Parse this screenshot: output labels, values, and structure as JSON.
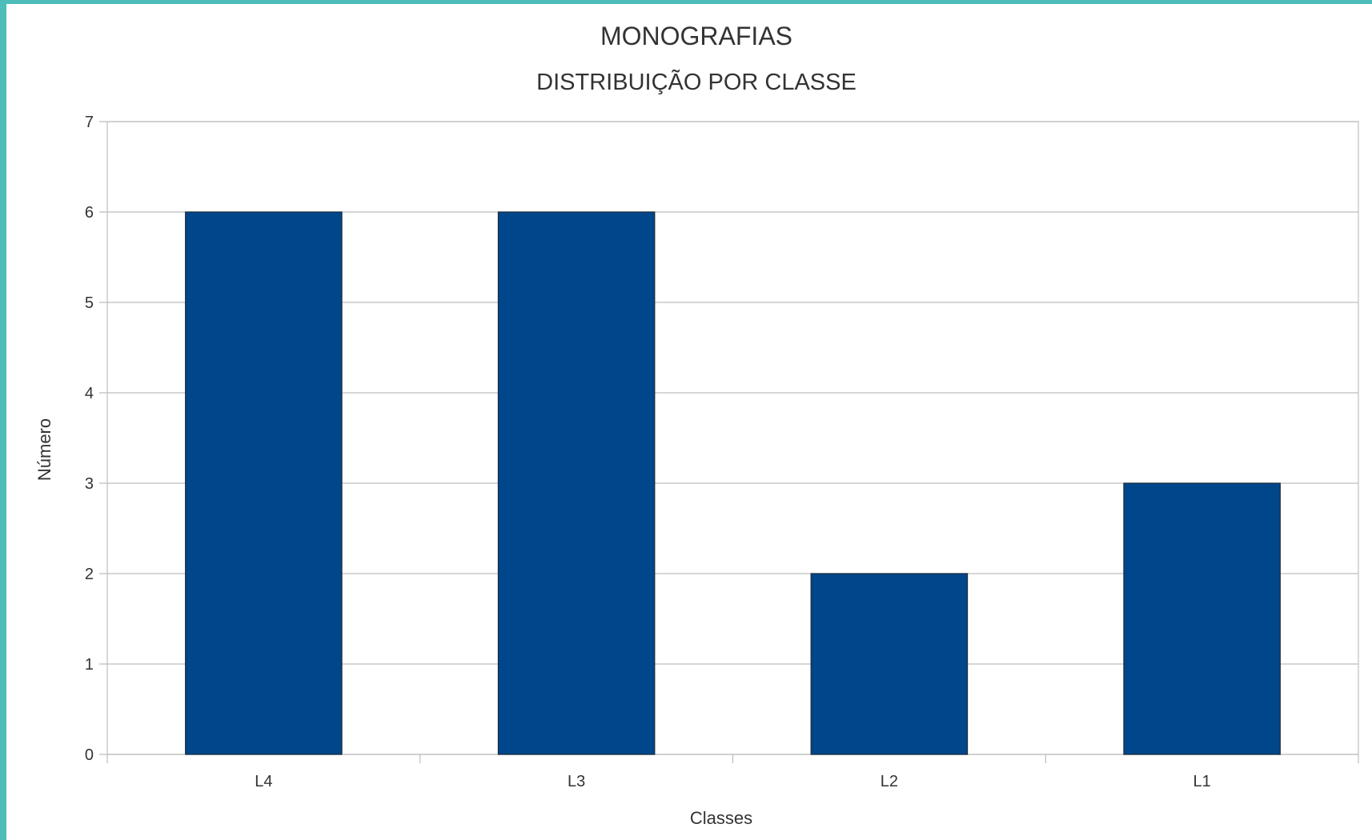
{
  "chart_data": {
    "type": "bar",
    "title": "MONOGRAFIAS",
    "subtitle": "DISTRIBUIÇÃO POR CLASSE",
    "xlabel": "Classes",
    "ylabel": "Número",
    "categories": [
      "L4",
      "L3",
      "L2",
      "L1"
    ],
    "values": [
      6,
      6,
      2,
      3
    ],
    "ylim": [
      0,
      7
    ],
    "yticks": [
      "0",
      "1",
      "2",
      "3",
      "4",
      "5",
      "6",
      "7"
    ],
    "grid": true,
    "legend": "none",
    "bar_color": "#00468b",
    "frame_color": "#4dbdba"
  }
}
